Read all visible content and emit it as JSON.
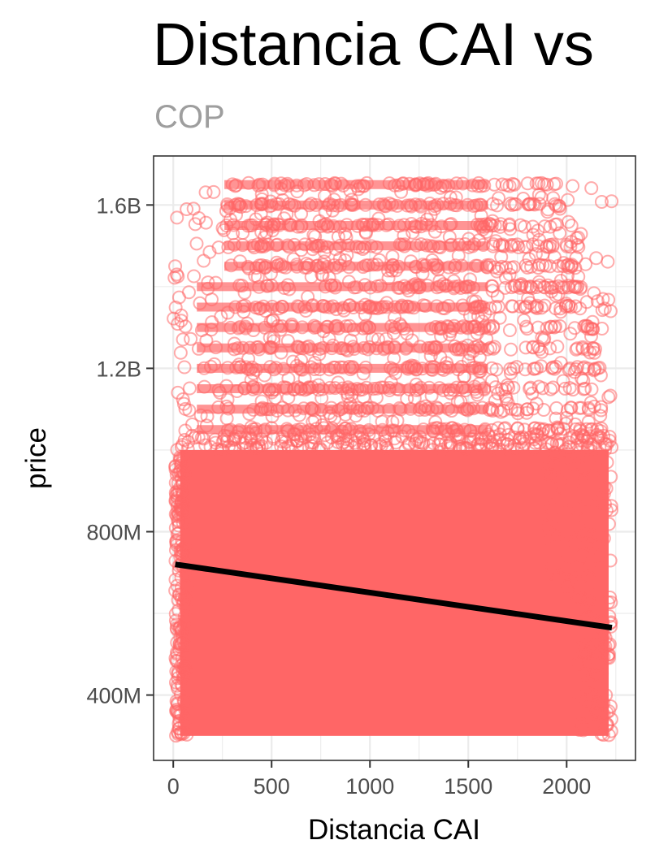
{
  "chart_data": {
    "type": "scatter",
    "title": "Distancia CAI vs",
    "subtitle": "COP",
    "xlabel": "Distancia CAI",
    "ylabel": "price",
    "xlim": [
      -100,
      2350
    ],
    "ylim": [
      240000000,
      1720000000
    ],
    "x_ticks": [
      0,
      500,
      1000,
      1500,
      2000
    ],
    "x_tick_labels": [
      "0",
      "500",
      "1000",
      "1500",
      "2000"
    ],
    "y_ticks": [
      400000000,
      800000000,
      1200000000,
      1600000000
    ],
    "y_tick_labels": [
      "400M",
      "800M",
      "1.2B",
      "1.6B"
    ],
    "grid": true,
    "legend": "none",
    "point_color": "#FF6666",
    "point_shape": "open-circle",
    "trend_color": "#000000",
    "dense_band": {
      "x": [
        10,
        2230
      ],
      "y": [
        300000000,
        1000000000
      ]
    },
    "scatter_band": {
      "x": [
        0,
        2230
      ],
      "y": [
        1000000000,
        1650000000
      ]
    },
    "price_levels": [
      1650000000,
      1600000000,
      1550000000,
      1500000000,
      1450000000,
      1400000000,
      1350000000,
      1300000000,
      1250000000,
      1200000000,
      1150000000,
      1100000000,
      1050000000
    ],
    "trend_line": {
      "x": [
        10,
        2230
      ],
      "y": [
        720000000,
        565000000
      ]
    }
  }
}
